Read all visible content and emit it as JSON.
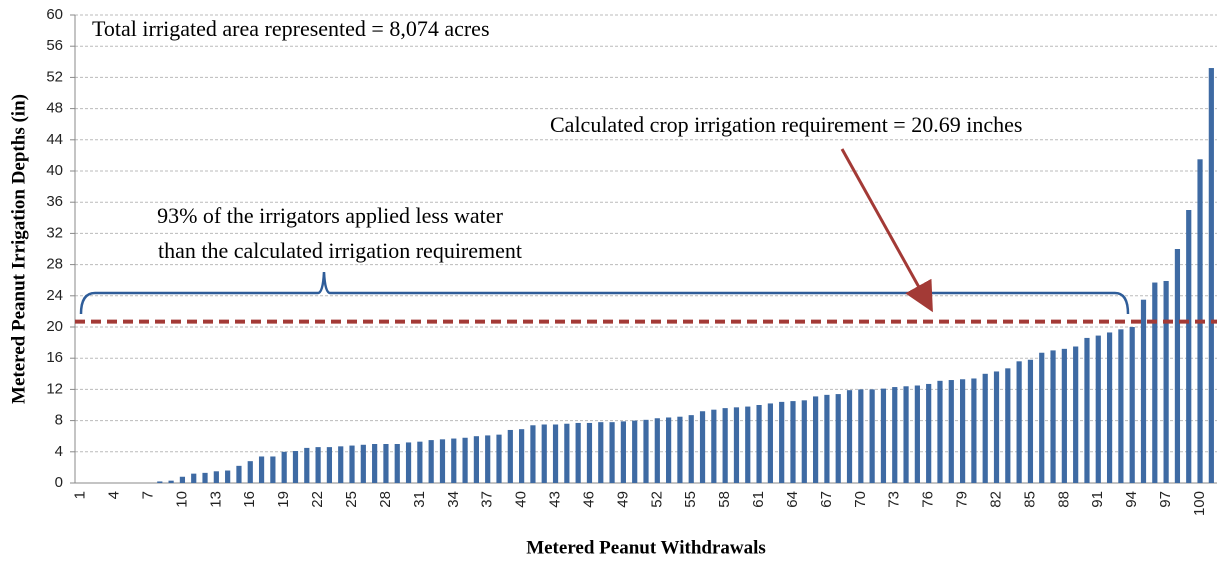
{
  "chart_data": {
    "type": "bar",
    "x_label": "Metered Peanut Withdrawals",
    "y_label": "Metered Peanut Irrigation Depths (in)",
    "annotations": [
      "Total irrigated area represented = 8,074 acres",
      "Calculated crop irrigation requirement = 20.69 inches",
      "93% of the irrigators applied less water",
      "than the calculated  irrigation requirement"
    ],
    "reference_line": {
      "value": 20.69,
      "color": "#a33a36"
    },
    "color": "#3e6aa3",
    "grid": true,
    "ylim": [
      0,
      60
    ],
    "yticks": [
      0,
      4,
      8,
      12,
      16,
      20,
      24,
      28,
      32,
      36,
      40,
      44,
      48,
      52,
      56,
      60
    ],
    "categories": [
      "1",
      null,
      null,
      "4",
      null,
      null,
      "7",
      null,
      null,
      "10",
      null,
      null,
      "13",
      null,
      null,
      "16",
      null,
      null,
      "19",
      null,
      null,
      "22",
      null,
      null,
      "25",
      null,
      null,
      "28",
      null,
      null,
      "31",
      null,
      null,
      "34",
      null,
      null,
      "37",
      null,
      null,
      "40",
      null,
      null,
      "43",
      null,
      null,
      "46",
      null,
      null,
      "49",
      null,
      null,
      "52",
      null,
      null,
      "55",
      null,
      null,
      "58",
      null,
      null,
      "61",
      null,
      null,
      "64",
      null,
      null,
      "67",
      null,
      null,
      "70",
      null,
      null,
      "73",
      null,
      null,
      "76",
      null,
      null,
      "79",
      null,
      null,
      "82",
      null,
      null,
      "85",
      null,
      null,
      "88",
      null,
      null,
      "91",
      null,
      null,
      "94",
      null,
      null,
      "97",
      null,
      null,
      "100",
      null
    ],
    "values": [
      0,
      0,
      0,
      0,
      0,
      0,
      0,
      0.2,
      0.3,
      0.8,
      1.2,
      1.3,
      1.5,
      1.6,
      2.2,
      2.8,
      3.4,
      3.4,
      4.0,
      4.1,
      4.5,
      4.6,
      4.6,
      4.7,
      4.8,
      4.9,
      5.0,
      5.0,
      5.0,
      5.2,
      5.3,
      5.5,
      5.6,
      5.7,
      5.8,
      6.0,
      6.1,
      6.2,
      6.8,
      6.9,
      7.4,
      7.5,
      7.5,
      7.6,
      7.7,
      7.7,
      7.8,
      7.8,
      7.9,
      8.0,
      8.1,
      8.3,
      8.4,
      8.5,
      8.7,
      9.2,
      9.4,
      9.6,
      9.7,
      9.8,
      10.0,
      10.2,
      10.4,
      10.5,
      10.6,
      11.1,
      11.3,
      11.4,
      11.9,
      12.0,
      12.0,
      12.1,
      12.3,
      12.4,
      12.5,
      12.7,
      13.1,
      13.2,
      13.3,
      13.4,
      14.0,
      14.3,
      14.7,
      15.6,
      15.8,
      16.7,
      17.0,
      17.2,
      17.5,
      18.6,
      18.9,
      19.3,
      19.7,
      20.0,
      23.5,
      25.7,
      25.9,
      30.0,
      35.0,
      41.5,
      53.2
    ]
  }
}
